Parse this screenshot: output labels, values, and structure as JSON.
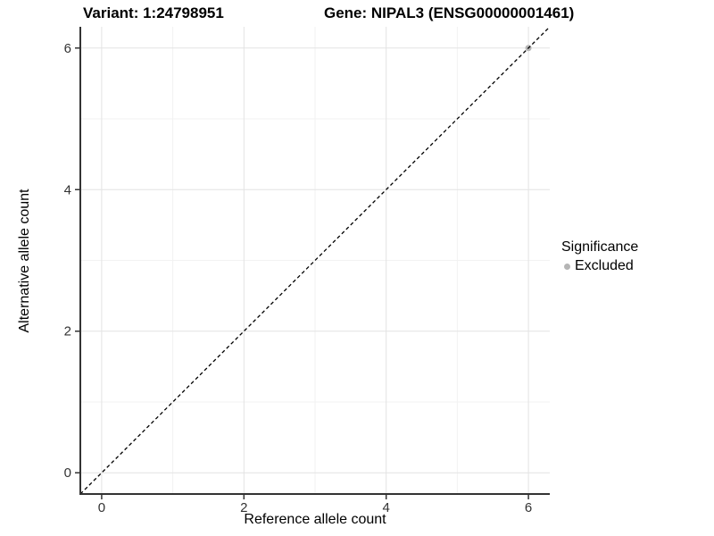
{
  "chart_data": {
    "type": "scatter",
    "titles": {
      "left": "Variant: 1:24798951",
      "right": "Gene: NIPAL3 (ENSG00000001461)"
    },
    "xlabel": "Reference allele count",
    "ylabel": "Alternative allele count",
    "xlim": [
      -0.3,
      6.3
    ],
    "ylim": [
      -0.3,
      6.3
    ],
    "x_ticks": [
      0,
      2,
      4,
      6
    ],
    "y_ticks": [
      0,
      2,
      4,
      6
    ],
    "x_minor_ticks": [
      1,
      3,
      5
    ],
    "y_minor_ticks": [
      1,
      3,
      5
    ],
    "grid": "major+minor",
    "reference_line": {
      "type": "identity",
      "equation": "y = x",
      "style": "dashed",
      "color": "#000000",
      "from": [
        -0.3,
        -0.3
      ],
      "to": [
        6.3,
        6.3
      ]
    },
    "series": [
      {
        "name": "Excluded",
        "color": "#b5b5b5",
        "points": [
          [
            6,
            6
          ]
        ]
      }
    ],
    "legend": {
      "title": "Significance",
      "position": "right",
      "items": [
        {
          "label": "Excluded",
          "color": "#b5b5b5"
        }
      ]
    },
    "colors": {
      "background": "#ffffff",
      "grid_major": "#e3e3e3",
      "grid_minor": "#f2f2f2",
      "axis_line": "#333333",
      "tick_mark": "#333333",
      "tick_label": "#333333",
      "title_text": "#000000"
    }
  }
}
